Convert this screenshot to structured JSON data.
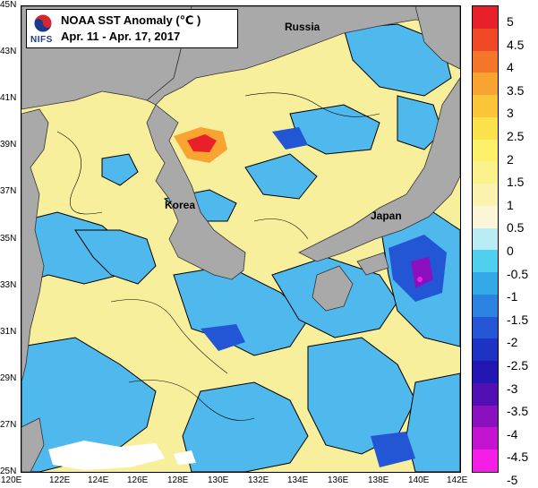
{
  "title": {
    "line1": "NOAA SST Anomaly (℃ )",
    "line2": "Apr. 11 - Apr. 17, 2017",
    "logo_text": "NIFS",
    "logo_icon": "nifs-taegeuk-logo-icon"
  },
  "places": {
    "russia": "Russia",
    "korea": "Korea",
    "japan": "Japan"
  },
  "lat_labels": [
    "45N",
    "43N",
    "41N",
    "39N",
    "37N",
    "35N",
    "33N",
    "31N",
    "29N",
    "27N",
    "25N"
  ],
  "lon_labels": [
    "120E",
    "122E",
    "124E",
    "126E",
    "128E",
    "130E",
    "132E",
    "134E",
    "136E",
    "138E",
    "140E",
    "142E"
  ],
  "colorbar": {
    "labels": [
      "5",
      "4.5",
      "4",
      "3.5",
      "3",
      "2.5",
      "2",
      "1.5",
      "1",
      "0.5",
      "0",
      "-0.5",
      "-1",
      "-1.5",
      "-2",
      "-2.5",
      "-3",
      "-3.5",
      "-4",
      "-4.5",
      "-5"
    ],
    "colors": [
      "#e8202a",
      "#ef4a25",
      "#f5762a",
      "#f9a431",
      "#fbc53a",
      "#fce24a",
      "#fdf06a",
      "#fbf28c",
      "#faf2ae",
      "#fbf7d6",
      "#b9ecf5",
      "#4fd0ee",
      "#33a9e7",
      "#2b82e0",
      "#2356d4",
      "#1d33c4",
      "#2317b3",
      "#5210b4",
      "#8a10c0",
      "#c414d2",
      "#f51ee6"
    ]
  },
  "colors": {
    "land": "#a9a9a9",
    "warm_sea": "#f8ef9c",
    "cool_sea": "#4fb8ec"
  }
}
